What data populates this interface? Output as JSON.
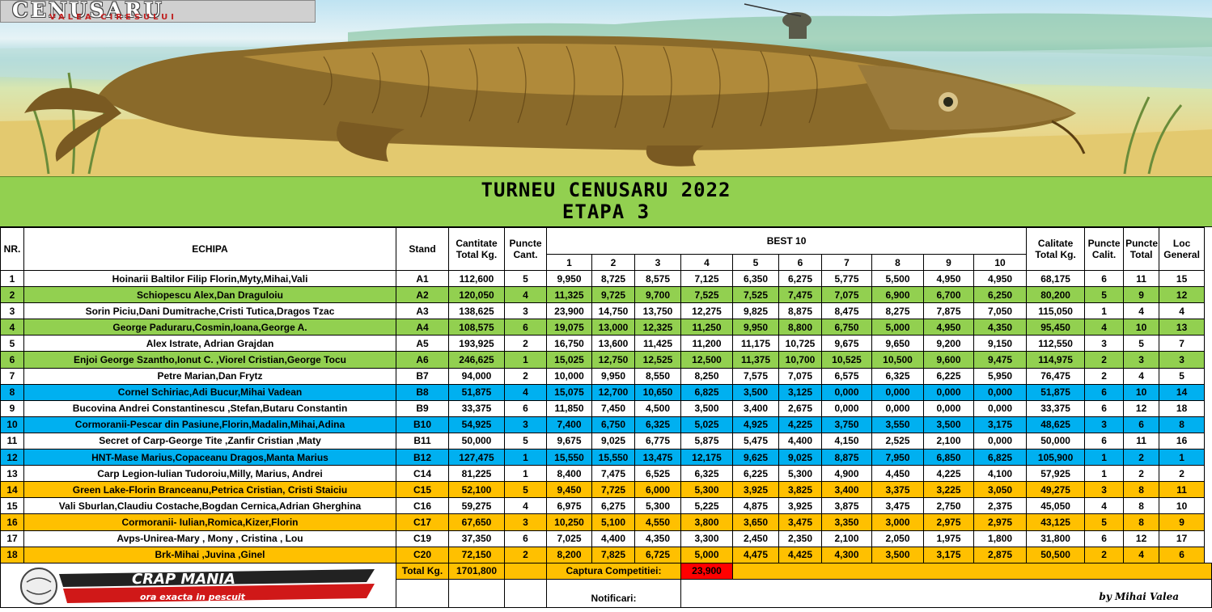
{
  "banner": {
    "logo_title": "CENUSARU",
    "logo_subtitle": "VALEA CIRESULUI"
  },
  "title": {
    "line1": "TURNEU CENUSARU 2022",
    "line2": "ETAPA 3"
  },
  "headers": {
    "nr": "NR.",
    "echipa": "ECHIPA",
    "stand": "Stand",
    "cant_a": "Cantitate",
    "cant_b": "Total Kg.",
    "pc_a": "Puncte",
    "pc_b": "Cant.",
    "best": "BEST 10",
    "best_cols": [
      "1",
      "2",
      "3",
      "4",
      "5",
      "6",
      "7",
      "8",
      "9",
      "10"
    ],
    "cal_a": "Calitate",
    "cal_b": "Total Kg.",
    "pcal_a": "Puncte",
    "pcal_b": "Calit.",
    "pt_a": "Puncte",
    "pt_b": "Total",
    "loc_a": "Loc",
    "loc_b": "General"
  },
  "rows": [
    {
      "nr": "1",
      "echipa": "Hoinarii Baltilor Filip Florin,Myty,Mihai,Vali",
      "stand": "A1",
      "total": "112,600",
      "pc": "5",
      "best": [
        "9,950",
        "8,725",
        "8,575",
        "7,125",
        "6,350",
        "6,275",
        "5,775",
        "5,500",
        "4,950",
        "4,950"
      ],
      "cal": "68,175",
      "pcal": "6",
      "pt": "11",
      "loc": "15",
      "color": "white"
    },
    {
      "nr": "2",
      "echipa": "Schiopescu Alex,Dan Draguloiu",
      "stand": "A2",
      "total": "120,050",
      "pc": "4",
      "best": [
        "11,325",
        "9,725",
        "9,700",
        "7,525",
        "7,525",
        "7,475",
        "7,075",
        "6,900",
        "6,700",
        "6,250"
      ],
      "cal": "80,200",
      "pcal": "5",
      "pt": "9",
      "loc": "12",
      "color": "green"
    },
    {
      "nr": "3",
      "echipa": "Sorin Piciu,Dani Dumitrache,Cristi Tutica,Dragos Tzac",
      "stand": "A3",
      "total": "138,625",
      "pc": "3",
      "best": [
        "23,900",
        "14,750",
        "13,750",
        "12,275",
        "9,825",
        "8,875",
        "8,475",
        "8,275",
        "7,875",
        "7,050"
      ],
      "cal": "115,050",
      "pcal": "1",
      "pt": "4",
      "loc": "4",
      "color": "white"
    },
    {
      "nr": "4",
      "echipa": "George Paduraru,Cosmin,Ioana,George A.",
      "stand": "A4",
      "total": "108,575",
      "pc": "6",
      "best": [
        "19,075",
        "13,000",
        "12,325",
        "11,250",
        "9,950",
        "8,800",
        "6,750",
        "5,000",
        "4,950",
        "4,350"
      ],
      "cal": "95,450",
      "pcal": "4",
      "pt": "10",
      "loc": "13",
      "color": "green"
    },
    {
      "nr": "5",
      "echipa": "Alex  Istrate, Adrian Grajdan",
      "stand": "A5",
      "total": "193,925",
      "pc": "2",
      "best": [
        "16,750",
        "13,600",
        "11,425",
        "11,200",
        "11,175",
        "10,725",
        "9,675",
        "9,650",
        "9,200",
        "9,150"
      ],
      "cal": "112,550",
      "pcal": "3",
      "pt": "5",
      "loc": "7",
      "color": "white"
    },
    {
      "nr": "6",
      "echipa": "Enjoi George Szantho,Ionut C. ,Viorel Cristian,George Tocu",
      "stand": "A6",
      "total": "246,625",
      "pc": "1",
      "best": [
        "15,025",
        "12,750",
        "12,525",
        "12,500",
        "11,375",
        "10,700",
        "10,525",
        "10,500",
        "9,600",
        "9,475"
      ],
      "cal": "114,975",
      "pcal": "2",
      "pt": "3",
      "loc": "3",
      "color": "green"
    },
    {
      "nr": "7",
      "echipa": "Petre Marian,Dan Frytz",
      "stand": "B7",
      "total": "94,000",
      "pc": "2",
      "best": [
        "10,000",
        "9,950",
        "8,550",
        "8,250",
        "7,575",
        "7,075",
        "6,575",
        "6,325",
        "6,225",
        "5,950"
      ],
      "cal": "76,475",
      "pcal": "2",
      "pt": "4",
      "loc": "5",
      "color": "white"
    },
    {
      "nr": "8",
      "echipa": "Cornel  Schiriac,Adi Bucur,Mihai Vadean",
      "stand": "B8",
      "total": "51,875",
      "pc": "4",
      "best": [
        "15,075",
        "12,700",
        "10,650",
        "6,825",
        "3,500",
        "3,125",
        "0,000",
        "0,000",
        "0,000",
        "0,000"
      ],
      "cal": "51,875",
      "pcal": "6",
      "pt": "10",
      "loc": "14",
      "color": "blue"
    },
    {
      "nr": "9",
      "echipa": "Bucovina Andrei Constantinescu ,Stefan,Butaru Constantin",
      "stand": "B9",
      "total": "33,375",
      "pc": "6",
      "best": [
        "11,850",
        "7,450",
        "4,500",
        "3,500",
        "3,400",
        "2,675",
        "0,000",
        "0,000",
        "0,000",
        "0,000"
      ],
      "cal": "33,375",
      "pcal": "6",
      "pt": "12",
      "loc": "18",
      "color": "white"
    },
    {
      "nr": "10",
      "echipa": "Cormoranii-Pescar din Pasiune,Florin,Madalin,Mihai,Adina",
      "stand": "B10",
      "total": "54,925",
      "pc": "3",
      "best": [
        "7,400",
        "6,750",
        "6,325",
        "5,025",
        "4,925",
        "4,225",
        "3,750",
        "3,550",
        "3,500",
        "3,175"
      ],
      "cal": "48,625",
      "pcal": "3",
      "pt": "6",
      "loc": "8",
      "color": "blue"
    },
    {
      "nr": "11",
      "echipa": "Secret of Carp-George Tite  ,Zanfir Cristian  ,Maty",
      "stand": "B11",
      "total": "50,000",
      "pc": "5",
      "best": [
        "9,675",
        "9,025",
        "6,775",
        "5,875",
        "5,475",
        "4,400",
        "4,150",
        "2,525",
        "2,100",
        "0,000"
      ],
      "cal": "50,000",
      "pcal": "6",
      "pt": "11",
      "loc": "16",
      "color": "white"
    },
    {
      "nr": "12",
      "echipa": "HNT-Mase Marius,Copaceanu Dragos,Manta Marius",
      "stand": "B12",
      "total": "127,475",
      "pc": "1",
      "best": [
        "15,550",
        "15,550",
        "13,475",
        "12,175",
        "9,625",
        "9,025",
        "8,875",
        "7,950",
        "6,850",
        "6,825"
      ],
      "cal": "105,900",
      "pcal": "1",
      "pt": "2",
      "loc": "1",
      "color": "blue"
    },
    {
      "nr": "13",
      "echipa": "Carp Legion-Iulian Tudoroiu,Milly, Marius,  Andrei",
      "stand": "C14",
      "total": "81,225",
      "pc": "1",
      "best": [
        "8,400",
        "7,475",
        "6,525",
        "6,325",
        "6,225",
        "5,300",
        "4,900",
        "4,450",
        "4,225",
        "4,100"
      ],
      "cal": "57,925",
      "pcal": "1",
      "pt": "2",
      "loc": "2",
      "color": "white"
    },
    {
      "nr": "14",
      "echipa": "Green Lake-Florin Branceanu,Petrica Cristian, Cristi Staiciu",
      "stand": "C15",
      "total": "52,100",
      "pc": "5",
      "best": [
        "9,450",
        "7,725",
        "6,000",
        "5,300",
        "3,925",
        "3,825",
        "3,400",
        "3,375",
        "3,225",
        "3,050"
      ],
      "cal": "49,275",
      "pcal": "3",
      "pt": "8",
      "loc": "11",
      "color": "orange"
    },
    {
      "nr": "15",
      "echipa": "Vali Sburlan,Claudiu Costache,Bogdan Cernica,Adrian Gherghina",
      "stand": "C16",
      "total": "59,275",
      "pc": "4",
      "best": [
        "6,975",
        "6,275",
        "5,300",
        "5,225",
        "4,875",
        "3,925",
        "3,875",
        "3,475",
        "2,750",
        "2,375"
      ],
      "cal": "45,050",
      "pcal": "4",
      "pt": "8",
      "loc": "10",
      "color": "white"
    },
    {
      "nr": "16",
      "echipa": "Cormoranii- Iulian,Romica,Kizer,Florin",
      "stand": "C17",
      "total": "67,650",
      "pc": "3",
      "best": [
        "10,250",
        "5,100",
        "4,550",
        "3,800",
        "3,650",
        "3,475",
        "3,350",
        "3,000",
        "2,975",
        "2,975"
      ],
      "cal": "43,125",
      "pcal": "5",
      "pt": "8",
      "loc": "9",
      "color": "orange"
    },
    {
      "nr": "17",
      "echipa": "Avps-Unirea-Mary , Mony , Cristina , Lou",
      "stand": "C19",
      "total": "37,350",
      "pc": "6",
      "best": [
        "7,025",
        "4,400",
        "4,350",
        "3,300",
        "2,450",
        "2,350",
        "2,100",
        "2,050",
        "1,975",
        "1,800"
      ],
      "cal": "31,800",
      "pcal": "6",
      "pt": "12",
      "loc": "17",
      "color": "white"
    },
    {
      "nr": "18",
      "echipa": "Brk-Mihai ,Juvina ,Ginel",
      "stand": "C20",
      "total": "72,150",
      "pc": "2",
      "best": [
        "8,200",
        "7,825",
        "6,725",
        "5,000",
        "4,475",
        "4,425",
        "4,300",
        "3,500",
        "3,175",
        "2,875"
      ],
      "cal": "50,500",
      "pcal": "2",
      "pt": "4",
      "loc": "6",
      "color": "orange"
    }
  ],
  "footer": {
    "total_label": "Total Kg.",
    "total_value": "1701,800",
    "captura_label": "Captura Competitiei:",
    "captura_value": "23,900",
    "notificari_label": "Notificari:",
    "logo_text": "CRAP MANIA",
    "logo_tagline": "ora exacta in pescuit",
    "signature": "by Mihai Valea"
  },
  "colors": {
    "green": "#92d050",
    "blue": "#00b0f0",
    "orange": "#ffc000",
    "red": "#ff0000"
  }
}
